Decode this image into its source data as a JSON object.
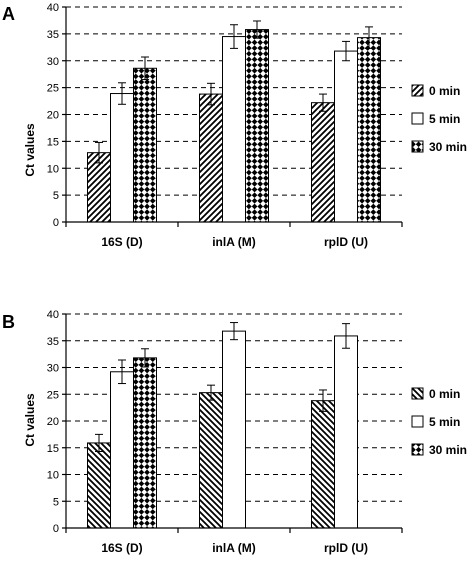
{
  "chart_data": [
    {
      "panel": "A",
      "type": "bar",
      "title": "",
      "xlabel": "",
      "ylabel": "Ct values",
      "ylim": [
        0,
        40
      ],
      "yticks": [
        0,
        5,
        10,
        15,
        20,
        25,
        30,
        35,
        40
      ],
      "grid": true,
      "legend_position": "right",
      "categories": [
        "16S (D)",
        "inlA (M)",
        "rplD (U)"
      ],
      "series": [
        {
          "name": "0 min",
          "values": [
            12.9,
            23.8,
            22.2
          ],
          "errors": [
            1.9,
            2.0,
            1.6
          ],
          "pattern": "diag-ne"
        },
        {
          "name": "5 min",
          "values": [
            23.9,
            34.5,
            31.8
          ],
          "errors": [
            2.0,
            2.2,
            1.8
          ],
          "pattern": "white"
        },
        {
          "name": "30 min",
          "values": [
            28.6,
            35.8,
            34.3
          ],
          "errors": [
            2.1,
            1.6,
            2.0
          ],
          "pattern": "checker"
        }
      ]
    },
    {
      "panel": "B",
      "type": "bar",
      "title": "",
      "xlabel": "",
      "ylabel": "Ct values",
      "ylim": [
        0,
        40
      ],
      "yticks": [
        0,
        5,
        10,
        15,
        20,
        25,
        30,
        35,
        40
      ],
      "grid": true,
      "legend_position": "right",
      "categories": [
        "16S (D)",
        "inlA (M)",
        "rplD (U)"
      ],
      "series": [
        {
          "name": "0 min",
          "values": [
            15.9,
            25.3,
            23.8
          ],
          "errors": [
            1.6,
            1.4,
            2.0
          ],
          "pattern": "diag-nw"
        },
        {
          "name": "5 min",
          "values": [
            29.2,
            36.8,
            35.9
          ],
          "errors": [
            2.2,
            1.6,
            2.3
          ],
          "pattern": "white"
        },
        {
          "name": "30 min",
          "values": [
            31.8,
            null,
            null
          ],
          "errors": [
            1.7,
            null,
            null
          ],
          "pattern": "checker"
        }
      ]
    }
  ]
}
